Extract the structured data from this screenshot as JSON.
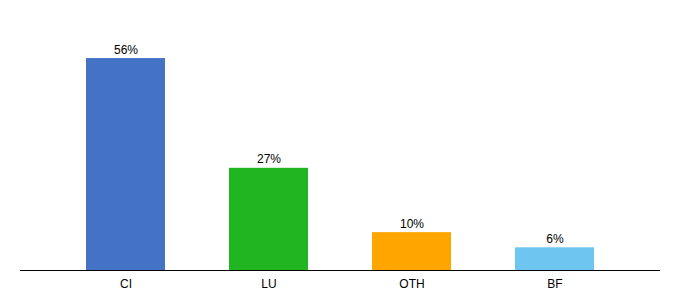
{
  "chart_data": {
    "type": "bar",
    "categories": [
      "CI",
      "LU",
      "OTH",
      "BF"
    ],
    "values": [
      56,
      27,
      10,
      6
    ],
    "value_labels": [
      "56%",
      "27%",
      "10%",
      "6%"
    ],
    "colors": [
      "#4472C4",
      "#22B522",
      "#FFA500",
      "#6EC6F0"
    ],
    "ylim": [
      0,
      65
    ],
    "grid": false,
    "data_labels": true,
    "tick_labels": "x"
  }
}
